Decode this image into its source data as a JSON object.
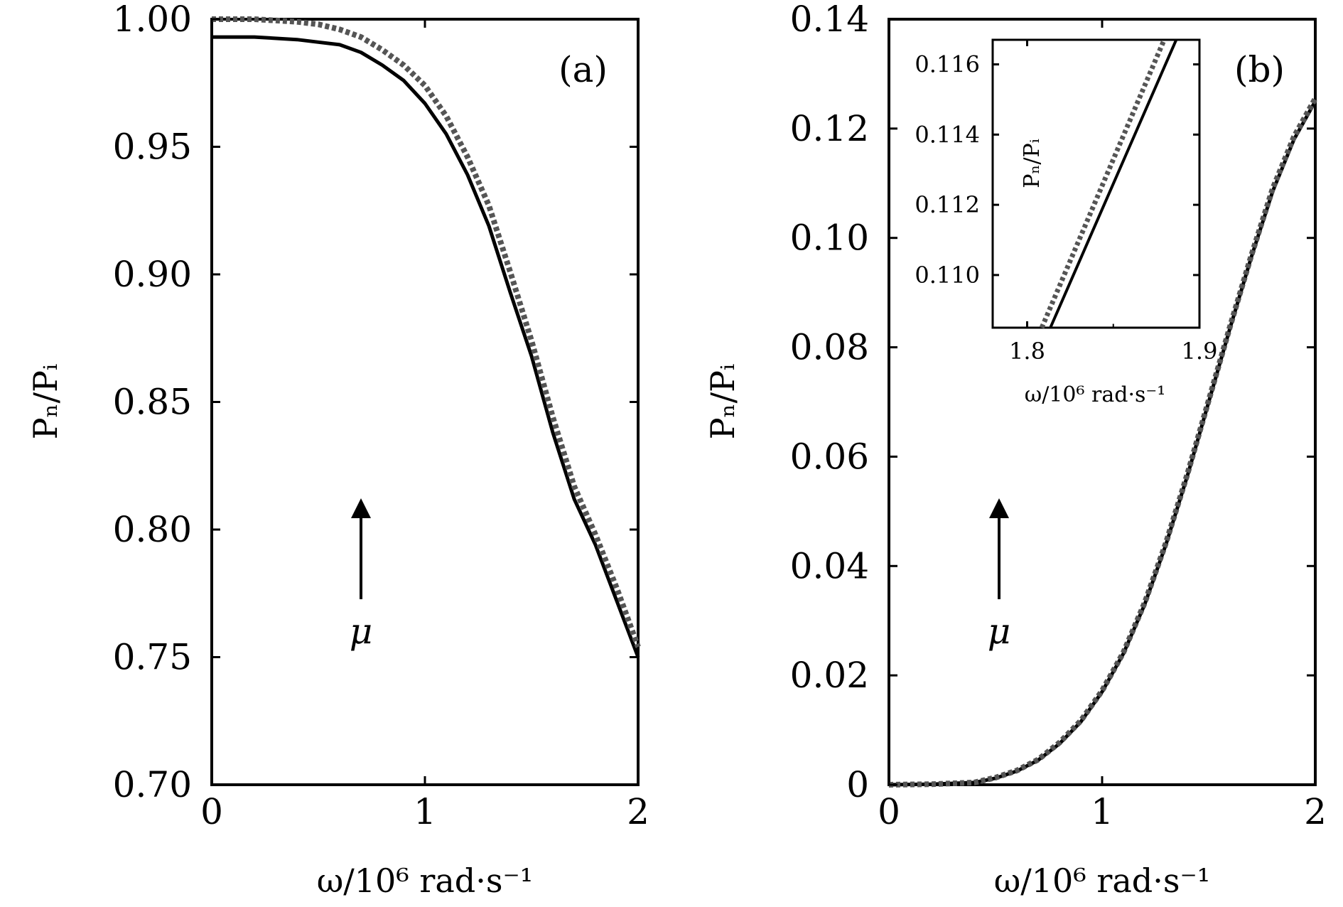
{
  "chart_data": [
    {
      "panel": "(a)",
      "type": "line",
      "xlabel": "ω/10⁶ rad·s⁻¹",
      "ylabel": "Pₙ/Pᵢ",
      "xlim": [
        0,
        2
      ],
      "ylim": [
        0.7,
        1.0
      ],
      "xticks": [
        "0",
        "1",
        "2"
      ],
      "yticks": [
        "0.70",
        "0.75",
        "0.80",
        "0.85",
        "0.90",
        "0.95",
        "1.00"
      ],
      "grid": false,
      "annotation": "μ",
      "series": [
        {
          "style": "solid",
          "color": "#000000",
          "x": [
            0,
            0.2,
            0.4,
            0.5,
            0.6,
            0.7,
            0.8,
            0.9,
            1.0,
            1.1,
            1.2,
            1.3,
            1.4,
            1.5,
            1.6,
            1.7,
            1.8,
            1.9,
            2.0
          ],
          "y": [
            0.993,
            0.993,
            0.992,
            0.991,
            0.99,
            0.987,
            0.982,
            0.976,
            0.967,
            0.955,
            0.939,
            0.919,
            0.893,
            0.868,
            0.838,
            0.812,
            0.794,
            0.772,
            0.75
          ]
        },
        {
          "style": "dotted",
          "color": "#555555",
          "x": [
            0,
            0.2,
            0.4,
            0.5,
            0.6,
            0.7,
            0.8,
            0.9,
            1.0,
            1.1,
            1.2,
            1.3,
            1.4,
            1.5,
            1.6,
            1.7,
            1.8,
            1.9,
            2.0
          ],
          "y": [
            1.0,
            1.0,
            0.999,
            0.998,
            0.996,
            0.993,
            0.988,
            0.982,
            0.974,
            0.962,
            0.946,
            0.927,
            0.901,
            0.874,
            0.844,
            0.817,
            0.798,
            0.777,
            0.754
          ]
        }
      ]
    },
    {
      "panel": "(b)",
      "type": "line",
      "xlabel": "ω/10⁶ rad·s⁻¹",
      "ylabel": "Pₙ/Pᵢ",
      "xlim": [
        0,
        2
      ],
      "ylim": [
        0,
        0.14
      ],
      "xticks": [
        "0",
        "1",
        "2"
      ],
      "yticks": [
        "0",
        "0.02",
        "0.04",
        "0.06",
        "0.08",
        "0.10",
        "0.12",
        "0.14"
      ],
      "grid": false,
      "annotation": "μ",
      "series": [
        {
          "style": "solid",
          "color": "#000000",
          "x": [
            0,
            0.2,
            0.4,
            0.5,
            0.6,
            0.7,
            0.8,
            0.9,
            1.0,
            1.1,
            1.2,
            1.3,
            1.4,
            1.5,
            1.6,
            1.7,
            1.8,
            1.9,
            2.0
          ],
          "y": [
            0.0,
            0.0001,
            0.0004,
            0.0012,
            0.0025,
            0.0045,
            0.0075,
            0.0115,
            0.017,
            0.024,
            0.033,
            0.044,
            0.0565,
            0.07,
            0.0835,
            0.0965,
            0.1085,
            0.118,
            0.125
          ]
        },
        {
          "style": "dotted",
          "color": "#555555",
          "x": [
            0,
            0.2,
            0.4,
            0.5,
            0.6,
            0.7,
            0.8,
            0.9,
            1.0,
            1.1,
            1.2,
            1.3,
            1.4,
            1.5,
            1.6,
            1.7,
            1.8,
            1.9,
            2.0
          ],
          "y": [
            0.0,
            0.0001,
            0.0004,
            0.0013,
            0.0026,
            0.0046,
            0.0077,
            0.0117,
            0.0172,
            0.0242,
            0.0333,
            0.0443,
            0.0568,
            0.0703,
            0.0838,
            0.0968,
            0.109,
            0.1185,
            0.1255
          ]
        }
      ],
      "inset": {
        "type": "line",
        "xlabel": "ω/10⁶ rad·s⁻¹",
        "ylabel": "Pₙ/Pᵢ",
        "xlim": [
          1.78,
          1.9
        ],
        "ylim": [
          0.1085,
          0.1167
        ],
        "xticks": [
          "1.8",
          "1.9"
        ],
        "yticks": [
          "0.110",
          "0.112",
          "0.114",
          "0.116"
        ],
        "series": [
          {
            "style": "solid",
            "color": "#000000",
            "x": [
              1.8135,
              1.8865
            ],
            "y": [
              0.1085,
              0.1167
            ]
          },
          {
            "style": "dotted",
            "color": "#555555",
            "x": [
              1.8085,
              1.8795
            ],
            "y": [
              0.1085,
              0.1167
            ]
          }
        ]
      }
    }
  ]
}
